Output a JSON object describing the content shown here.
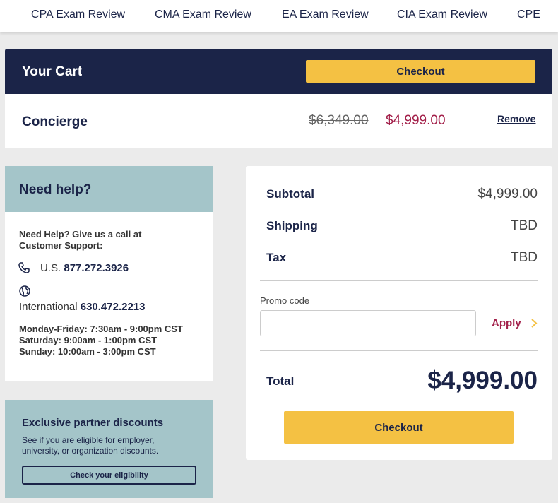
{
  "nav": [
    "CPA Exam Review",
    "CMA Exam Review",
    "EA Exam Review",
    "CIA Exam Review",
    "CPE"
  ],
  "cart": {
    "title": "Your Cart",
    "checkout": "Checkout",
    "item": {
      "name": "Concierge",
      "original_price": "$6,349.00",
      "price": "$4,999.00",
      "remove": "Remove"
    }
  },
  "help": {
    "title": "Need help?",
    "intro": "Need Help? Give us a call at Customer Support:",
    "us_label": "U.S.",
    "us_phone": "877.272.3926",
    "intl_label": "International",
    "intl_phone": "630.472.2213",
    "hours": "Monday-Friday: 7:30am - 9:00pm CST Saturday: 9:00am - 1:00pm CST Sunday: 10:00am - 3:00pm CST"
  },
  "partner": {
    "title": "Exclusive partner discounts",
    "text": "See if you are eligible for employer, university, or organization discounts.",
    "button": "Check your eligibility"
  },
  "summary": {
    "rows": [
      [
        "Subtotal",
        "$4,999.00"
      ],
      [
        "Shipping",
        "TBD"
      ],
      [
        "Tax",
        "TBD"
      ]
    ],
    "promo_label": "Promo code",
    "apply": "Apply",
    "total_label": "Total",
    "total_value": "$4,999.00",
    "checkout": "Checkout"
  }
}
